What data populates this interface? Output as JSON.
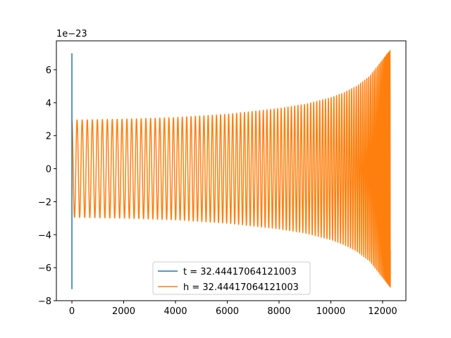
{
  "chart_data": {
    "type": "line",
    "title": "",
    "xlabel": "",
    "ylabel": "",
    "offset_text": "1e−23",
    "xlim": [
      -600,
      12900
    ],
    "ylim": [
      -8,
      7.75
    ],
    "x_ticks": [
      0,
      2000,
      4000,
      6000,
      8000,
      10000,
      12000
    ],
    "x_tick_labels": [
      "0",
      "2000",
      "4000",
      "6000",
      "8000",
      "10000",
      "12000"
    ],
    "y_ticks": [
      -8,
      -6,
      -4,
      -2,
      0,
      2,
      4,
      6
    ],
    "y_tick_labels": [
      "−8",
      "−6",
      "−4",
      "−2",
      "0",
      "2",
      "4",
      "6"
    ],
    "grid": false,
    "legend_position": "lower center",
    "series": [
      {
        "name": "t = 32.44417064121003",
        "color": "#1f77b4",
        "x": [
          0,
          0,
          0
        ],
        "y": [
          7.0,
          -7.3,
          0
        ]
      },
      {
        "name": "h = 32.44417064121003",
        "color": "#ff7f0e",
        "envelope": {
          "x": [
            0,
            2000,
            4000,
            6000,
            8000,
            9000,
            10000,
            10500,
            11000,
            11500,
            12000,
            12300
          ],
          "amplitude": [
            2.95,
            3.0,
            3.1,
            3.3,
            3.65,
            3.9,
            4.3,
            4.6,
            5.0,
            5.6,
            6.6,
            7.2
          ]
        }
      }
    ]
  }
}
